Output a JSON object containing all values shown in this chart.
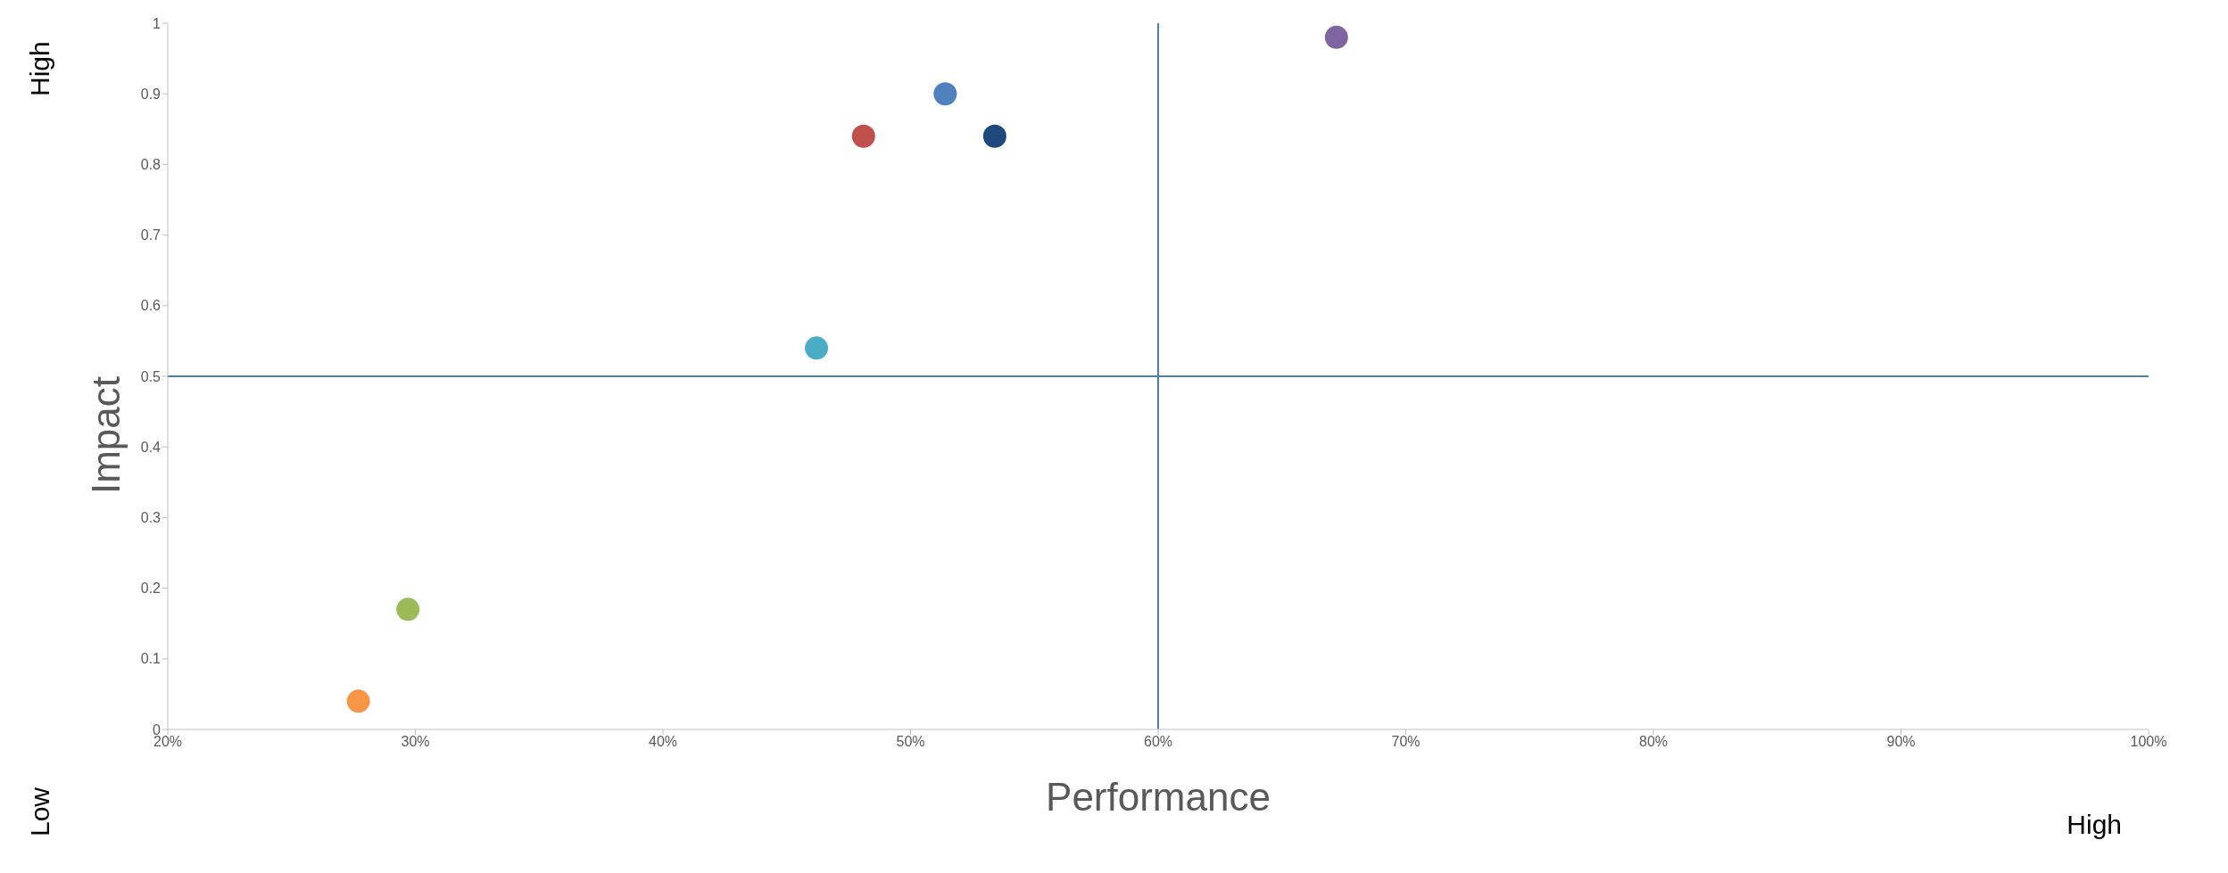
{
  "chart_data": {
    "type": "scatter",
    "xlabel": "Performance",
    "ylabel": "Impact",
    "x": [
      27.7,
      29.7,
      46.2,
      48.1,
      51.4,
      53.4,
      67.2
    ],
    "values": [
      0.04,
      0.17,
      0.54,
      0.84,
      0.9,
      0.84,
      0.98
    ],
    "colors": [
      "#f79646",
      "#9bbb59",
      "#4bacc6",
      "#c0504d",
      "#4f81bd",
      "#1f497d",
      "#8064a2"
    ],
    "xlim": [
      20,
      100
    ],
    "xticks": [
      {
        "value": 20,
        "label": "20%"
      },
      {
        "value": 30,
        "label": "30%"
      },
      {
        "value": 40,
        "label": "40%"
      },
      {
        "value": 50,
        "label": "50%"
      },
      {
        "value": 60,
        "label": "60%"
      },
      {
        "value": 70,
        "label": "70%"
      },
      {
        "value": 80,
        "label": "80%"
      },
      {
        "value": 90,
        "label": "90%"
      },
      {
        "value": 100,
        "label": "100%"
      }
    ],
    "ylim": [
      0,
      1
    ],
    "yticks": [
      0,
      0.1,
      0.2,
      0.3,
      0.4,
      0.5,
      0.6,
      0.7,
      0.8,
      0.9,
      1
    ],
    "ref_lines": [
      {
        "axis": "x",
        "value": 60,
        "color": "#4a7ebb"
      },
      {
        "axis": "y",
        "value": 0.5,
        "color": "#4a7ebb"
      }
    ],
    "annotations": [
      "High",
      "Low",
      "High"
    ],
    "marker": "circle",
    "grid": false
  }
}
